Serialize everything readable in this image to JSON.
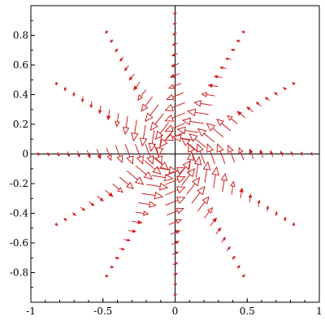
{
  "chart_data": {
    "type": "vector_field",
    "title": "",
    "xlabel": "",
    "ylabel": "",
    "xlim": [
      -1,
      1
    ],
    "ylim": [
      -1,
      1
    ],
    "grid": false,
    "x_ticks": [
      -1,
      -0.5,
      0,
      0.5,
      1
    ],
    "x_tick_labels": [
      "-1",
      "-0.5",
      "0",
      "0.5",
      "1"
    ],
    "y_ticks": [
      -0.8,
      -0.6,
      -0.4,
      -0.2,
      0,
      0.2,
      0.4,
      0.6,
      0.8
    ],
    "y_tick_labels": [
      "-0.8",
      "-0.6",
      "-0.4",
      "-0.2",
      "0",
      "0.2",
      "0.4",
      "0.6",
      "0.8"
    ],
    "arrow_color": "#cc2222",
    "field": {
      "description_source": "arrows along radial lines from the origin",
      "num_rays": 12,
      "ray_angles_deg": [
        0,
        30,
        60,
        90,
        120,
        150,
        180,
        210,
        240,
        270,
        300,
        330
      ],
      "radial_samples": [
        0.12,
        0.18,
        0.25,
        0.32,
        0.39,
        0.46,
        0.53,
        0.6,
        0.67,
        0.74,
        0.81,
        0.88,
        0.95
      ],
      "inner_radius": 0.12
    }
  }
}
